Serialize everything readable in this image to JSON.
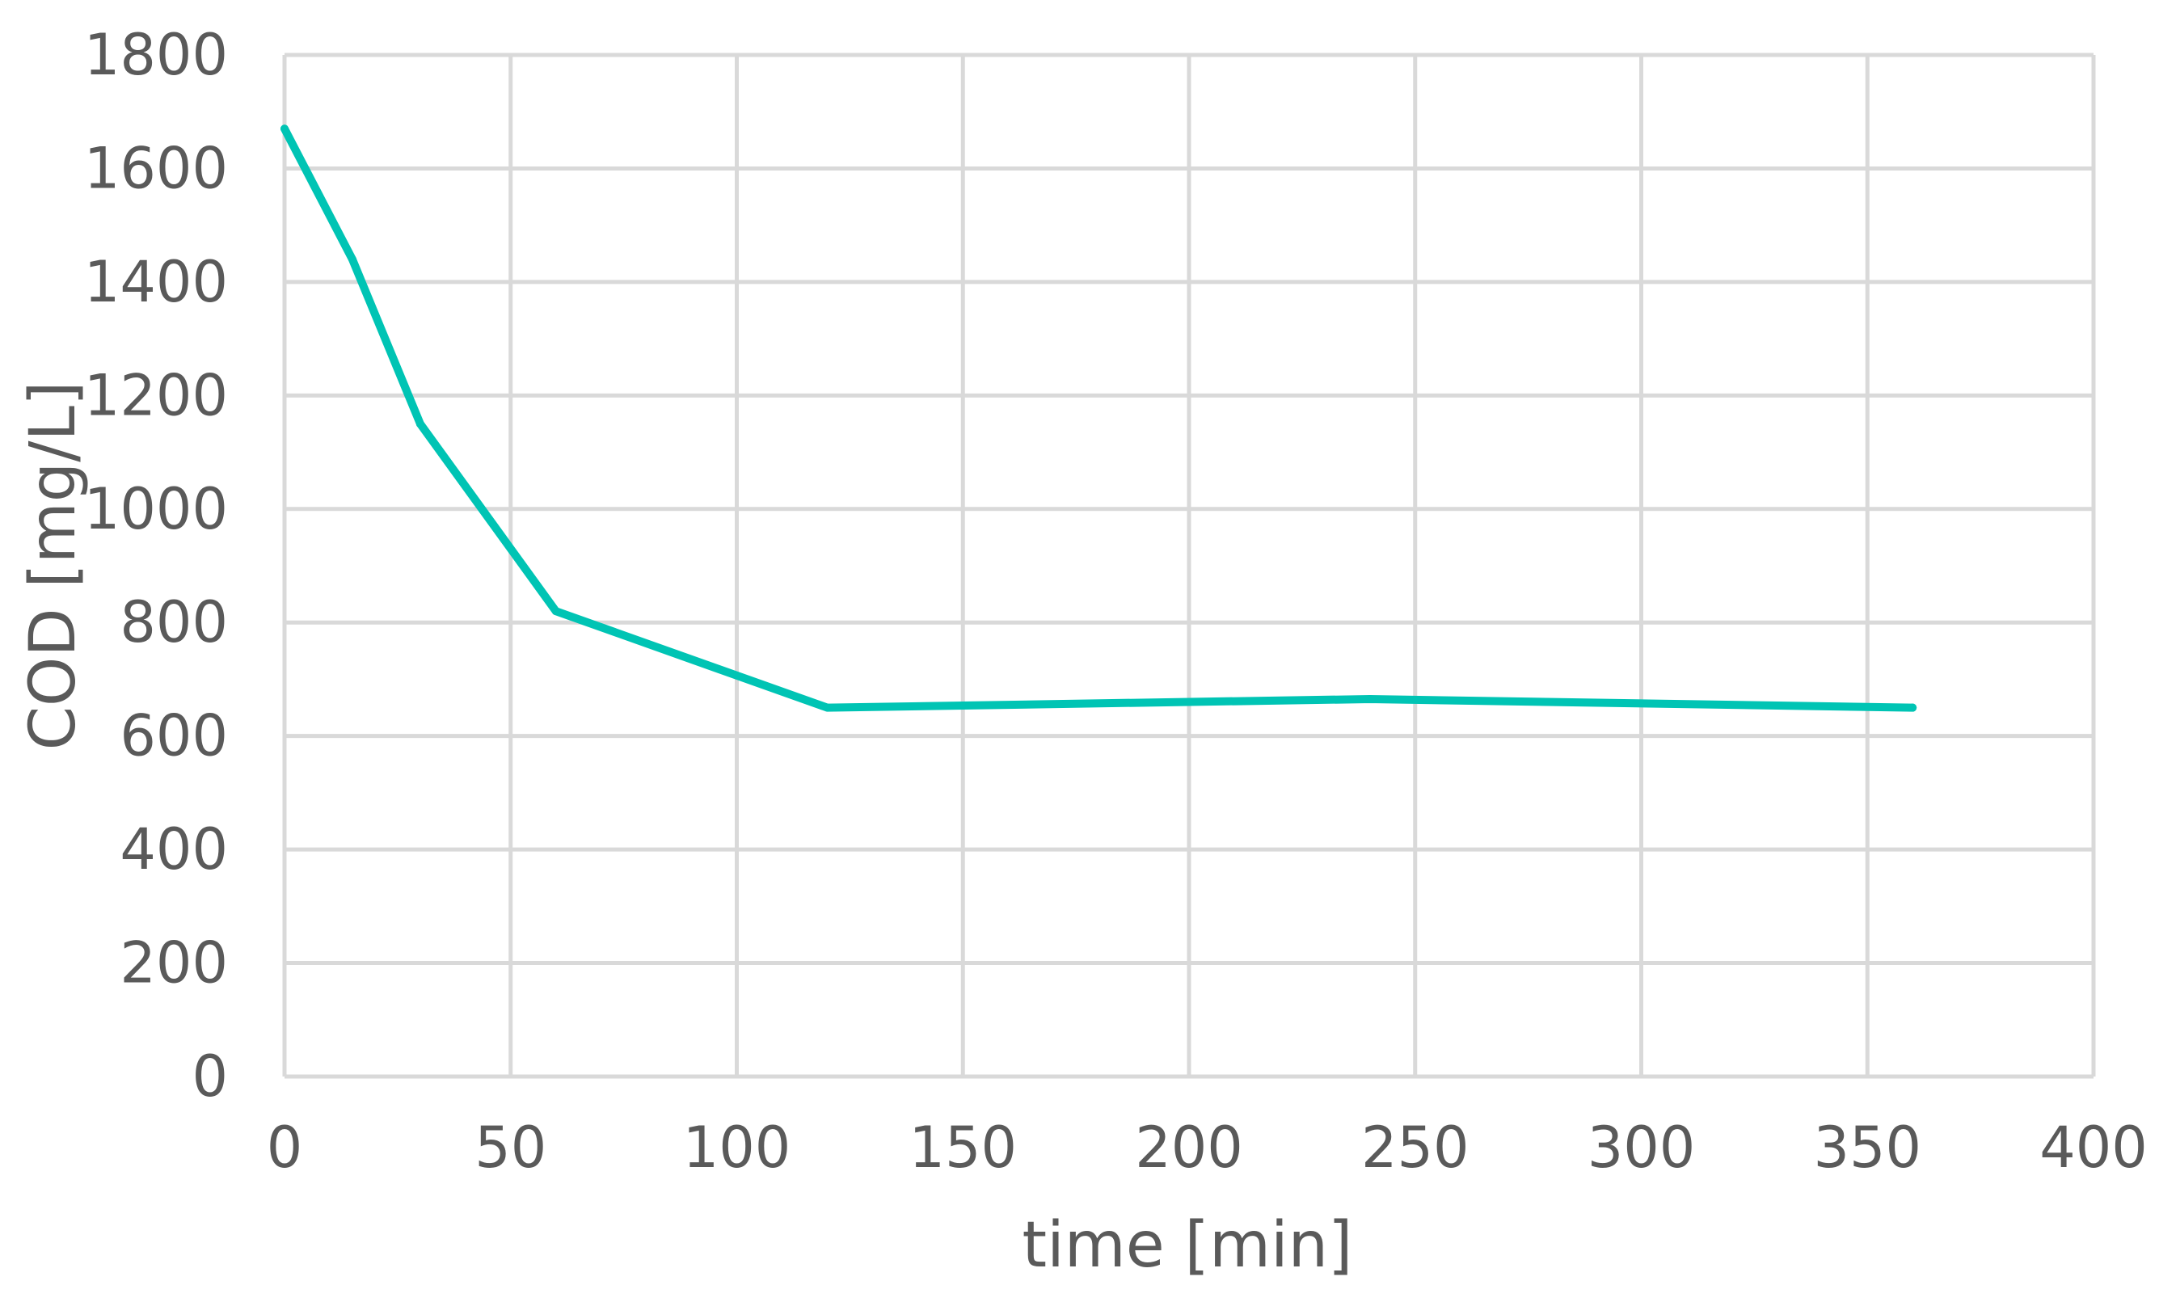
{
  "chart_data": {
    "type": "line",
    "title": "",
    "xlabel": "time [min]",
    "ylabel": "COD [mg/L]",
    "xlim": [
      0,
      400
    ],
    "ylim": [
      0,
      1800
    ],
    "x_ticks": [
      "0",
      "50",
      "100",
      "150",
      "200",
      "250",
      "300",
      "350",
      "400"
    ],
    "y_ticks": [
      "0",
      "200",
      "400",
      "600",
      "800",
      "1000",
      "1200",
      "1400",
      "1600",
      "1800"
    ],
    "grid": true,
    "legend": "none",
    "series": [
      {
        "color": "#00c4b4",
        "x": [
          0,
          15,
          30,
          60,
          120,
          240,
          360
        ],
        "y": [
          1670,
          1440,
          1150,
          820,
          650,
          665,
          650
        ]
      }
    ]
  }
}
